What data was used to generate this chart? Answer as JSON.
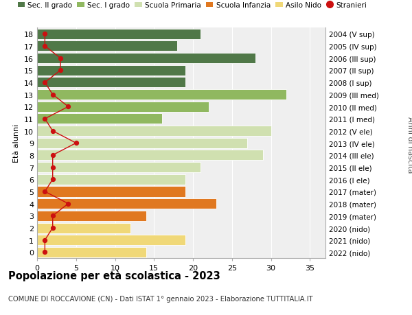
{
  "ages": [
    0,
    1,
    2,
    3,
    4,
    5,
    6,
    7,
    8,
    9,
    10,
    11,
    12,
    13,
    14,
    15,
    16,
    17,
    18
  ],
  "anni_nascita": [
    "2022 (nido)",
    "2021 (nido)",
    "2020 (nido)",
    "2019 (mater)",
    "2018 (mater)",
    "2017 (mater)",
    "2016 (I ele)",
    "2015 (II ele)",
    "2014 (III ele)",
    "2013 (IV ele)",
    "2012 (V ele)",
    "2011 (I med)",
    "2010 (II med)",
    "2009 (III med)",
    "2008 (I sup)",
    "2007 (II sup)",
    "2006 (III sup)",
    "2005 (IV sup)",
    "2004 (V sup)"
  ],
  "bar_values": [
    14,
    19,
    12,
    14,
    23,
    19,
    19,
    21,
    29,
    27,
    30,
    16,
    22,
    32,
    19,
    19,
    28,
    18,
    21
  ],
  "bar_colors": [
    "#f0d878",
    "#f0d878",
    "#f0d878",
    "#e07820",
    "#e07820",
    "#e07820",
    "#d0e0b0",
    "#d0e0b0",
    "#d0e0b0",
    "#d0e0b0",
    "#d0e0b0",
    "#90b860",
    "#90b860",
    "#90b860",
    "#507848",
    "#507848",
    "#507848",
    "#507848",
    "#507848"
  ],
  "stranieri_values": [
    1,
    1,
    2,
    2,
    4,
    1,
    2,
    2,
    2,
    5,
    2,
    1,
    4,
    2,
    1,
    3,
    3,
    1,
    1
  ],
  "legend_labels": [
    "Sec. II grado",
    "Sec. I grado",
    "Scuola Primaria",
    "Scuola Infanzia",
    "Asilo Nido",
    "Stranieri"
  ],
  "legend_colors": [
    "#507848",
    "#90b860",
    "#d0e0b0",
    "#e07820",
    "#f0d878",
    "#cc1010"
  ],
  "title": "Popolazione per età scolastica - 2023",
  "subtitle": "COMUNE DI ROCCAVIONE (CN) - Dati ISTAT 1° gennaio 2023 - Elaborazione TUTTITALIA.IT",
  "ylabel_left": "Età alunni",
  "ylabel_right": "Anni di nascita",
  "xlim": [
    0,
    37
  ],
  "background_color": "#ffffff",
  "plot_bg_color": "#efefef",
  "bar_height": 0.85
}
